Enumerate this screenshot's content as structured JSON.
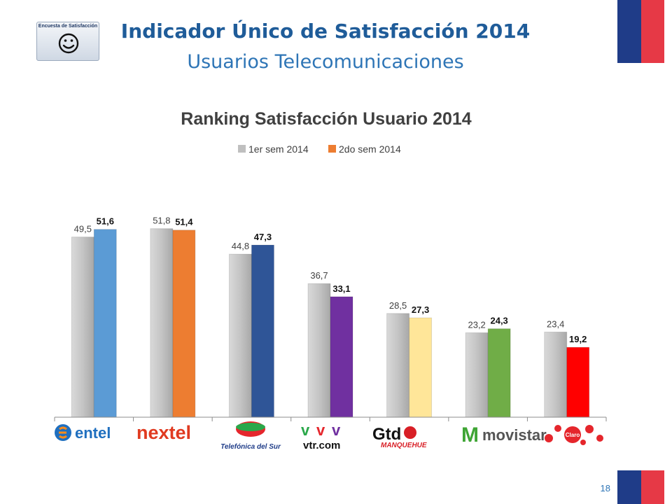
{
  "header": {
    "badge_label": "Encuesta de Satisfacción",
    "title": "Indicador Único de Satisfacción 2014",
    "subtitle": "Usuarios Telecomunicaciones"
  },
  "icons": [
    "smiley-icon"
  ],
  "colors": {
    "flag_blue": "#1f3c88",
    "flag_red": "#e63946",
    "title_blue": "#1f5c99"
  },
  "chart_data": {
    "type": "bar",
    "title": "Ranking Satisfacción Usuario 2014",
    "xlabel": "",
    "ylabel": "",
    "ylim": [
      0,
      60
    ],
    "grid": false,
    "legend_position": "top",
    "categories": [
      "entel",
      "nextel",
      "Telefónica del Sur",
      "vtr.com",
      "Gtd Manquehue",
      "movistar",
      "Claro"
    ],
    "series": [
      {
        "name": "1er sem 2014",
        "legend_color": "#bfbfbf",
        "values": [
          49.5,
          51.8,
          44.8,
          36.7,
          28.5,
          23.2,
          23.4
        ],
        "labels": [
          "49,5",
          "51,8",
          "44,8",
          "36,7",
          "28,5",
          "23,2",
          "23,4"
        ],
        "colors": [
          "#c0c0c0",
          "#c0c0c0",
          "#c0c0c0",
          "#c0c0c0",
          "#c0c0c0",
          "#c0c0c0",
          "#c0c0c0"
        ]
      },
      {
        "name": "2do sem 2014",
        "legend_color": "#ed7d31",
        "values": [
          51.6,
          51.4,
          47.3,
          33.1,
          27.3,
          24.3,
          19.2
        ],
        "labels": [
          "51,6",
          "51,4",
          "47,3",
          "33,1",
          "27,3",
          "24,3",
          "19,2"
        ],
        "colors": [
          "#5b9bd5",
          "#ed7d31",
          "#2f5597",
          "#7030a0",
          "#ffe699",
          "#70ad47",
          "#ff0000"
        ]
      }
    ]
  },
  "logos": {
    "entel": "entel",
    "nextel": "nextel",
    "telefonica": "Telefónica del Sur",
    "vtr": "vtr.com",
    "gtd": "Gtd",
    "gtd_sub": "MANQUEHUE",
    "movistar": "movistar",
    "claro": "Claro"
  },
  "footer": {
    "page_number": "18"
  }
}
